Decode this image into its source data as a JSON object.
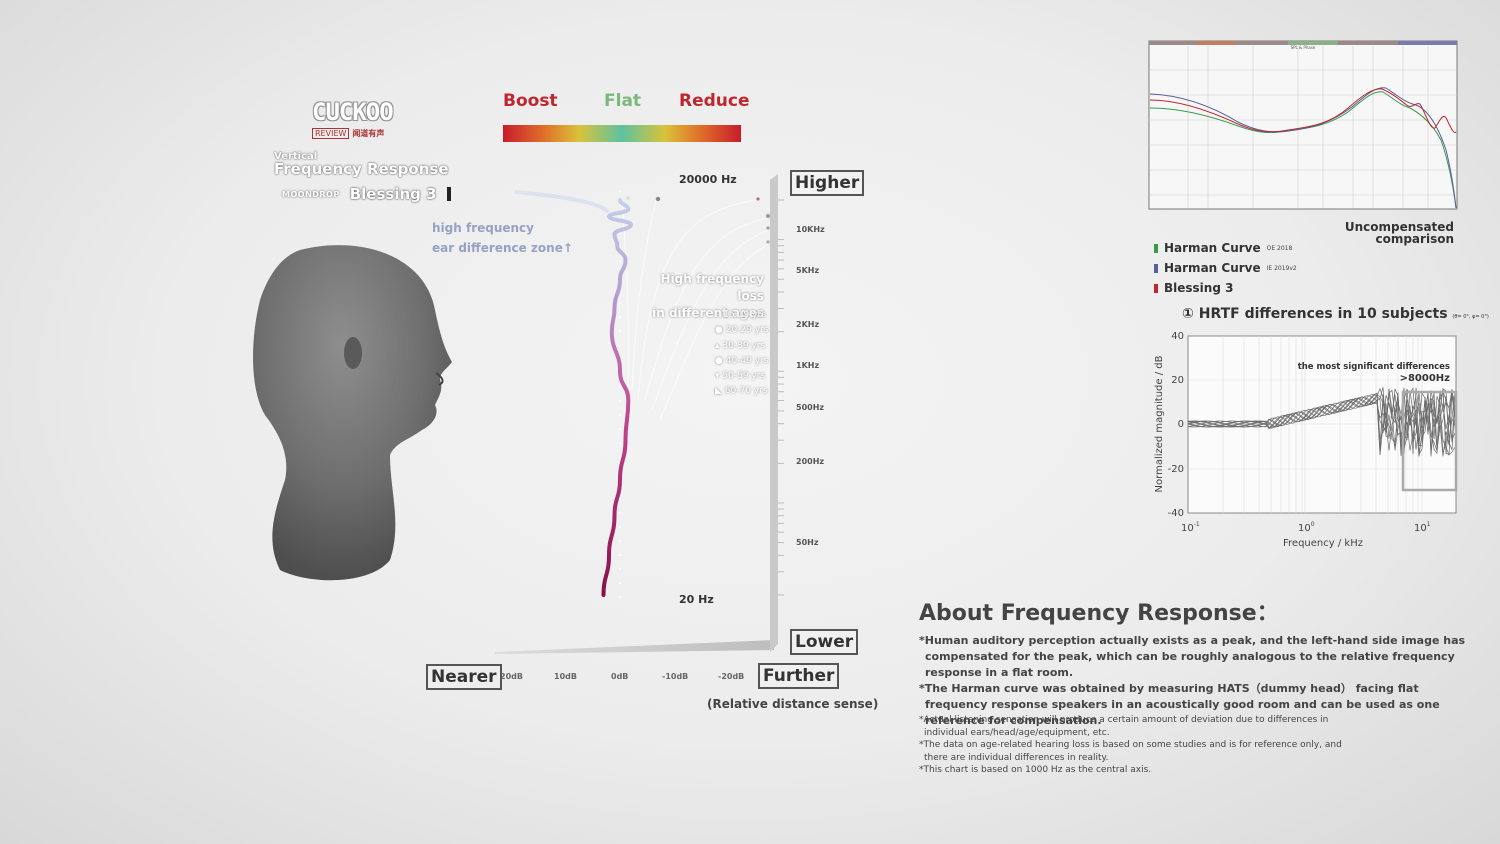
{
  "brand": {
    "logo_text": "CUCKOO",
    "logo_review": "REVIEW",
    "logo_cn": "闻道有声",
    "label_vertical": "Vertical",
    "title": "Frequency Response",
    "maker": "MOONDROP",
    "model": "Blessing 3"
  },
  "legend": {
    "boost": "Boost",
    "flat": "Flat",
    "reduce": "Reduce",
    "colors": [
      "#c81d2a",
      "#e0742a",
      "#d9c23a",
      "#5fc2a0",
      "#d9c23a",
      "#e0742a",
      "#c81d2a"
    ]
  },
  "vertical_chart": {
    "top_hz": "20000 Hz",
    "bottom_hz": "20 Hz",
    "higher": "Higher",
    "lower": "Lower",
    "nearer": "Nearer",
    "further": "Further",
    "relative": "(Relative distance sense)",
    "freq_ticks": [
      "10KHz",
      "5KHz",
      "2KHz",
      "1KHz",
      "500Hz",
      "200Hz",
      "50Hz"
    ],
    "db_ticks": [
      "20dB",
      "10dB",
      "0dB",
      "-10dB",
      "-20dB"
    ],
    "zone_line1": "high frequency",
    "zone_line2": "ear difference zone↑",
    "loss_line1": "High frequency loss",
    "loss_line2": "in different ages",
    "ages": [
      "15-19 yrs",
      "20-29 yrs",
      "30-39 yrs",
      "40-49 yrs",
      "50-59 yrs",
      "60-70 yrs"
    ],
    "series": [
      {
        "name": "Blessing 3",
        "freq_hz": [
          20,
          40,
          80,
          150,
          300,
          600,
          1000,
          2000,
          3000,
          5000,
          7000,
          9000,
          11000,
          13000,
          15000,
          17000,
          20000
        ],
        "db": [
          3,
          2,
          1,
          0,
          -1,
          -1.5,
          0,
          1.5,
          1,
          0,
          -1,
          0.5,
          1,
          -2,
          2,
          -1.5,
          0
        ]
      }
    ]
  },
  "fr_chart": {
    "caption": "SPL & Phase",
    "uncomp1": "Uncompensated",
    "uncomp2": "comparison",
    "legend": [
      {
        "name": "Harman Curve",
        "sup": "OE 2018",
        "color": "#3a9a48"
      },
      {
        "name": "Harman Curve",
        "sup": "IE 2019v2",
        "color": "#5a5e9c"
      },
      {
        "name": "Blessing 3",
        "sup": "",
        "color": "#c0262e"
      }
    ]
  },
  "hrtf": {
    "title": "① HRTF differences in 10 subjects",
    "title_small": "(θ= 0°,   φ= 0°)",
    "ylabel": "Normalized magnitude / dB",
    "xlabel": "Frequency / kHz",
    "yticks": [
      "40",
      "20",
      "0",
      "-20",
      "-40"
    ],
    "xticks": [
      "10",
      "10",
      "10"
    ],
    "xtick_exps": [
      "-1",
      "0",
      "1"
    ],
    "annotation1": "the most significant differences",
    "annotation2": ">8000Hz"
  },
  "about": {
    "title": "About Frequency Response：",
    "p1": "*Human auditory perception actually exists as a peak, and the left-hand side image has compensated for the peak, which can be roughly analogous to the relative frequency response in a flat room.",
    "p2": "*The Harman curve was obtained by measuring HATS（dummy head） facing  flat frequency response speakers in an acoustically good room and can be used as one reference for compensation.",
    "n1": "*Actual listening sensation will produce a certain amount of deviation due to differences in individual ears/head/age/equipment, etc.",
    "n2": "*The data on age-related hearing loss is based on some studies and is for reference only, and there are individual differences in reality.",
    "n3": "*This chart is based on 1000 Hz as the central axis."
  }
}
